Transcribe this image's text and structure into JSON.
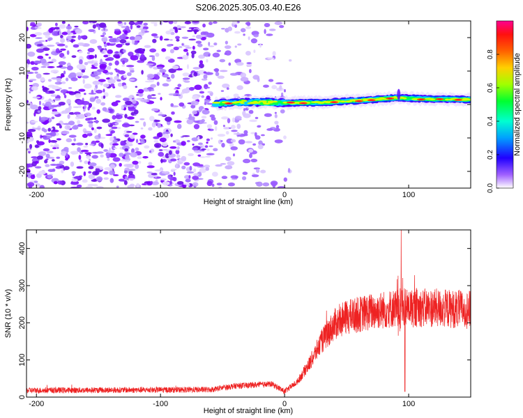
{
  "page": {
    "title": "S206.2025.305.03.40.E26"
  },
  "chart_data": [
    {
      "type": "heatmap",
      "xlabel": "Height of straight line (km)",
      "ylabel": "Frequency (Hz)",
      "xlim": [
        -208,
        150
      ],
      "ylim": [
        -25,
        25
      ],
      "xticks": [
        -200,
        -100,
        0,
        100
      ],
      "xtick_labels": [
        "-200",
        "-100",
        "0",
        "100"
      ],
      "yticks": [
        -20,
        -10,
        0,
        10,
        20
      ],
      "ytick_labels": [
        "-20",
        "-10",
        "0",
        "10",
        "20"
      ],
      "colorbar": {
        "label": "Normalized spectral amplitude",
        "range": [
          0,
          1
        ],
        "ticks": [
          0.0,
          0.2,
          0.4,
          0.6,
          0.8
        ],
        "tick_labels": [
          "0.0",
          "0.2",
          "0.4",
          "0.6",
          "0.8"
        ],
        "colormap": [
          "#ffffff",
          "#7a00ff",
          "#0000ff",
          "#00c8ff",
          "#00ff60",
          "#c8ff00",
          "#ffc000",
          "#ff3000",
          "#ff0080"
        ]
      },
      "noise_region_km": [
        -208,
        -5
      ],
      "ridge": [
        {
          "x": -55,
          "f": 0.2
        },
        {
          "x": -30,
          "f": 0.8
        },
        {
          "x": 0,
          "f": 0.5
        },
        {
          "x": 30,
          "f": 0.6
        },
        {
          "x": 60,
          "f": 1.2
        },
        {
          "x": 90,
          "f": 2.0
        },
        {
          "x": 120,
          "f": 1.6
        },
        {
          "x": 150,
          "f": 1.5
        }
      ]
    },
    {
      "type": "line",
      "xlabel": "Height of straight line (km)",
      "ylabel": "SNR (10 * v/v)",
      "xlim": [
        -208,
        150
      ],
      "ylim": [
        0,
        450
      ],
      "xticks": [
        -200,
        -100,
        0,
        100
      ],
      "xtick_labels": [
        "-200",
        "-100",
        "0",
        "100"
      ],
      "yticks": [
        0,
        100,
        200,
        300,
        400
      ],
      "ytick_labels": [
        "0",
        "100",
        "200",
        "300",
        "400"
      ],
      "color": "#ee2222",
      "trend": [
        {
          "x": -208,
          "y": 18
        },
        {
          "x": -60,
          "y": 20
        },
        {
          "x": -40,
          "y": 30
        },
        {
          "x": -10,
          "y": 35
        },
        {
          "x": 0,
          "y": 15
        },
        {
          "x": 10,
          "y": 40
        },
        {
          "x": 20,
          "y": 90
        },
        {
          "x": 30,
          "y": 150
        },
        {
          "x": 40,
          "y": 195
        },
        {
          "x": 50,
          "y": 215
        },
        {
          "x": 70,
          "y": 230
        },
        {
          "x": 90,
          "y": 240
        },
        {
          "x": 120,
          "y": 240
        },
        {
          "x": 150,
          "y": 235
        }
      ],
      "features": [
        {
          "x": 94,
          "y": 450
        },
        {
          "x": 97,
          "y": 15
        }
      ]
    }
  ]
}
